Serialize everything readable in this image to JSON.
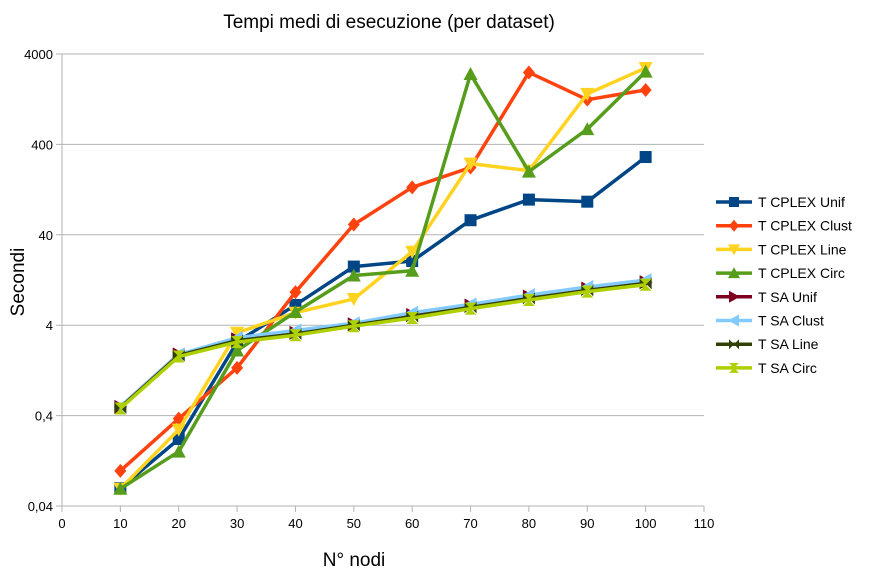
{
  "chart_data": {
    "type": "line",
    "title": "Tempi medi di esecuzione (per dataset)",
    "xlabel": "N° nodi",
    "ylabel": "Secondi",
    "y_scale": "log",
    "xlim": [
      0,
      110
    ],
    "ylim": [
      0.04,
      4000
    ],
    "x_ticks": [
      0,
      10,
      20,
      30,
      40,
      50,
      60,
      70,
      80,
      90,
      100,
      110
    ],
    "y_ticks": [
      0.04,
      0.4,
      4,
      40,
      400,
      4000
    ],
    "y_tick_labels": [
      "0,04",
      "0,4",
      "4",
      "40",
      "400",
      "4000"
    ],
    "grid": "horizontal",
    "legend_position": "right",
    "x": [
      10,
      20,
      30,
      40,
      50,
      60,
      70,
      80,
      90,
      100
    ],
    "series": [
      {
        "name": "T CPLEX Unif",
        "color": "#004586",
        "marker": "square",
        "values": [
          0.063,
          0.22,
          2.6,
          6.7,
          17.8,
          20.5,
          58,
          98,
          93,
          290
        ]
      },
      {
        "name": "T CPLEX Clust",
        "color": "#ff420e",
        "marker": "diamond",
        "values": [
          0.098,
          0.37,
          1.35,
          9.3,
          52,
          134,
          222,
          2500,
          1250,
          1600
        ]
      },
      {
        "name": "T CPLEX Line",
        "color": "#ffd320",
        "marker": "triangle-down",
        "values": [
          0.062,
          0.28,
          3.3,
          5.5,
          7.8,
          26,
          245,
          205,
          1450,
          2800
        ]
      },
      {
        "name": "T CPLEX Circ",
        "color": "#579d1c",
        "marker": "triangle-up",
        "values": [
          0.062,
          0.16,
          2.1,
          5.6,
          14.2,
          16,
          2400,
          200,
          590,
          2550
        ]
      },
      {
        "name": "T SA Unif",
        "color": "#7e0021",
        "marker": "triangle-right",
        "values": [
          0.5,
          1.9,
          2.8,
          3.3,
          4.1,
          5.2,
          6.6,
          8.3,
          10.2,
          12.0
        ]
      },
      {
        "name": "T SA Clust",
        "color": "#83caff",
        "marker": "triangle-left",
        "values": [
          0.5,
          1.9,
          2.9,
          3.5,
          4.2,
          5.5,
          6.8,
          8.6,
          10.6,
          12.6
        ]
      },
      {
        "name": "T SA Line",
        "color": "#314004",
        "marker": "bowtie",
        "values": [
          0.49,
          1.85,
          2.7,
          3.2,
          4.0,
          5.0,
          6.3,
          7.9,
          9.7,
          11.6
        ]
      },
      {
        "name": "T SA Circ",
        "color": "#aecf00",
        "marker": "hourglass",
        "values": [
          0.48,
          1.8,
          2.6,
          3.1,
          3.9,
          4.8,
          6.1,
          7.6,
          9.4,
          11.2
        ]
      }
    ]
  }
}
